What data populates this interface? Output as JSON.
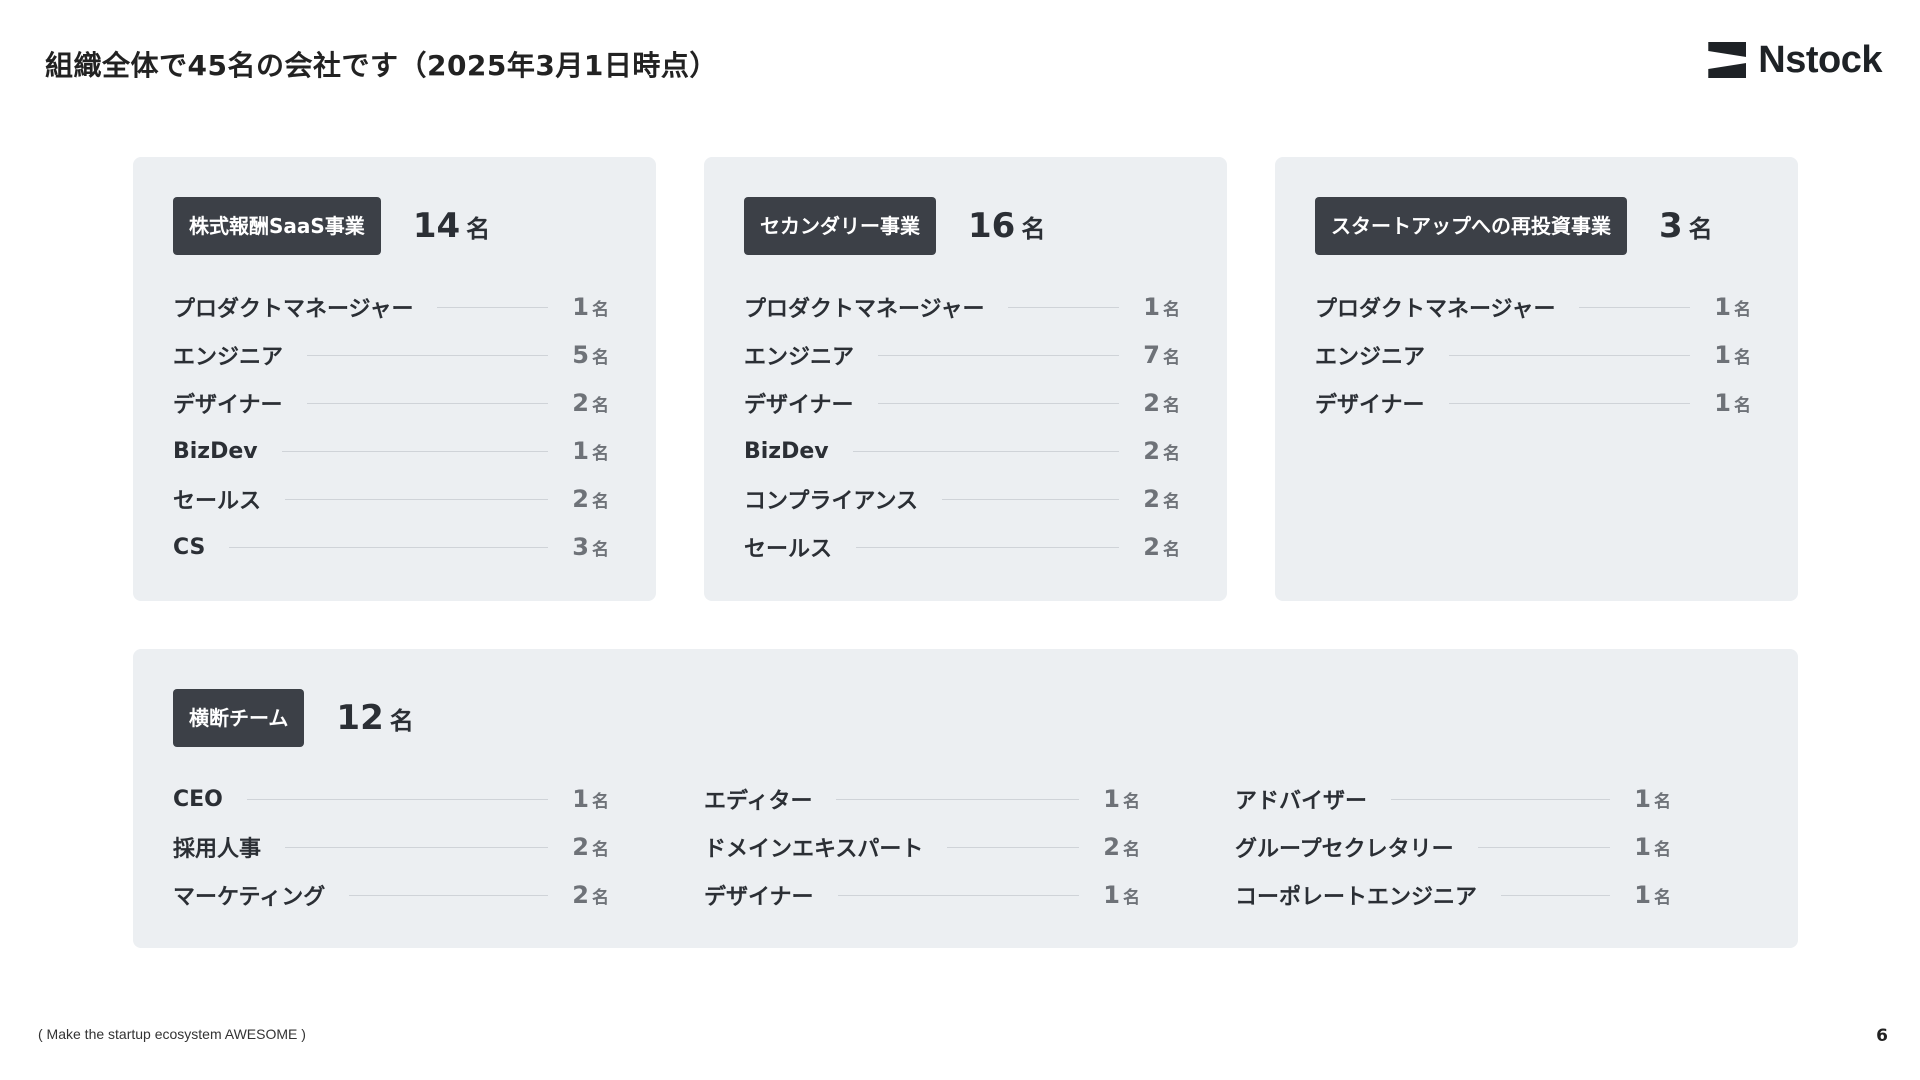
{
  "header": {
    "title": "組織全体で45名の会社です（2025年3月1日時点）",
    "logo_text": "Nstock"
  },
  "cards": [
    {
      "tag": "株式報酬SaaS事業",
      "total": "14",
      "unit": "名",
      "rows": [
        {
          "label": "プロダクトマネージャー",
          "count": "1",
          "unit": "名"
        },
        {
          "label": "エンジニア",
          "count": "5",
          "unit": "名"
        },
        {
          "label": "デザイナー",
          "count": "2",
          "unit": "名"
        },
        {
          "label": "BizDev",
          "count": "1",
          "unit": "名"
        },
        {
          "label": "セールス",
          "count": "2",
          "unit": "名"
        },
        {
          "label": "CS",
          "count": "3",
          "unit": "名"
        }
      ]
    },
    {
      "tag": "セカンダリー事業",
      "total": "16",
      "unit": "名",
      "rows": [
        {
          "label": "プロダクトマネージャー",
          "count": "1",
          "unit": "名"
        },
        {
          "label": "エンジニア",
          "count": "7",
          "unit": "名"
        },
        {
          "label": "デザイナー",
          "count": "2",
          "unit": "名"
        },
        {
          "label": "BizDev",
          "count": "2",
          "unit": "名"
        },
        {
          "label": "コンプライアンス",
          "count": "2",
          "unit": "名"
        },
        {
          "label": "セールス",
          "count": "2",
          "unit": "名"
        }
      ]
    },
    {
      "tag": "スタートアップへの再投資事業",
      "total": "3",
      "unit": "名",
      "rows": [
        {
          "label": "プロダクトマネージャー",
          "count": "1",
          "unit": "名"
        },
        {
          "label": "エンジニア",
          "count": "1",
          "unit": "名"
        },
        {
          "label": "デザイナー",
          "count": "1",
          "unit": "名"
        }
      ]
    }
  ],
  "cross_team": {
    "tag": "横断チーム",
    "total": "12",
    "unit": "名",
    "columns": [
      [
        {
          "label": "CEO",
          "count": "1",
          "unit": "名"
        },
        {
          "label": "採用人事",
          "count": "2",
          "unit": "名"
        },
        {
          "label": "マーケティング",
          "count": "2",
          "unit": "名"
        }
      ],
      [
        {
          "label": "エディター",
          "count": "1",
          "unit": "名"
        },
        {
          "label": "ドメインエキスパート",
          "count": "2",
          "unit": "名"
        },
        {
          "label": "デザイナー",
          "count": "1",
          "unit": "名"
        }
      ],
      [
        {
          "label": "アドバイザー",
          "count": "1",
          "unit": "名"
        },
        {
          "label": "グループセクレタリー",
          "count": "1",
          "unit": "名"
        },
        {
          "label": "コーポレートエンジニア",
          "count": "1",
          "unit": "名"
        }
      ]
    ]
  },
  "footer": {
    "note": "( Make the startup ecosystem AWESOME )",
    "page_number": "6"
  }
}
